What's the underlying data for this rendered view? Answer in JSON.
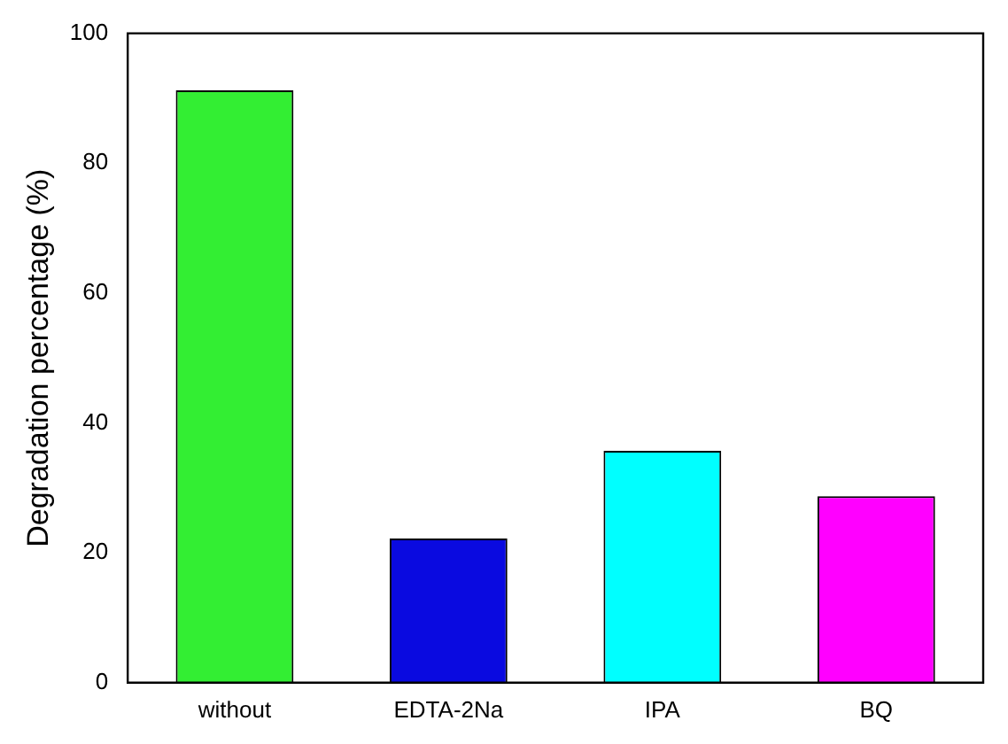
{
  "chart_data": {
    "type": "bar",
    "ylabel": "Degradation percentage (%)",
    "categories": [
      "without",
      "EDTA-2Na",
      "IPA",
      "BQ"
    ],
    "values": [
      91.2,
      22.2,
      35.7,
      28.7
    ],
    "colors": [
      "#33ee33",
      "#0a0ae0",
      "#00ffff",
      "#ff00ff"
    ],
    "ylim": [
      0,
      100
    ],
    "yticks": [
      0,
      20,
      40,
      60,
      80,
      100
    ],
    "grid": false,
    "legend": false
  }
}
